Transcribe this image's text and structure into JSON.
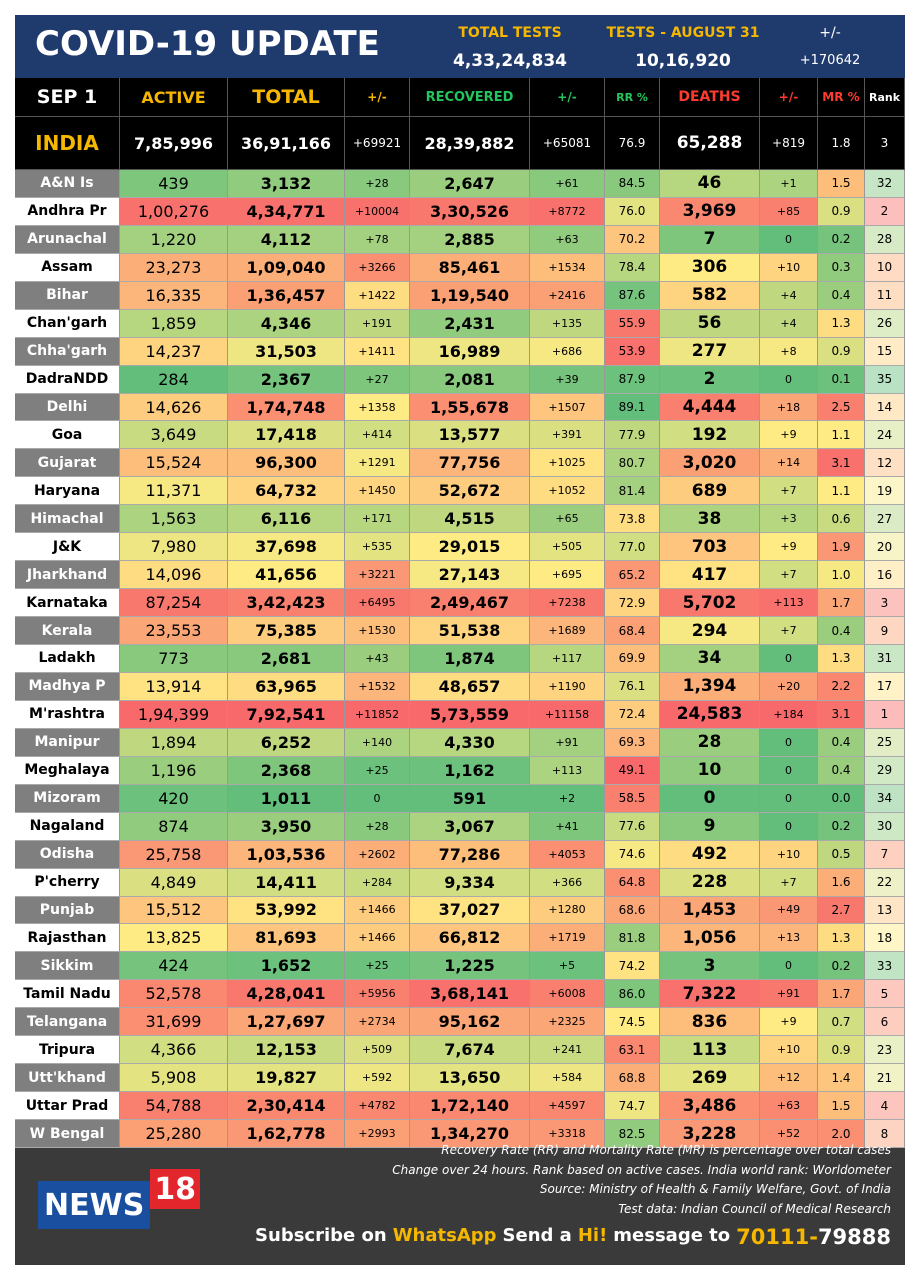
{
  "header": {
    "title": "COVID-19 UPDATE",
    "tests": {
      "label": "TOTAL TESTS",
      "value": "4,33,24,834"
    },
    "tests_day": {
      "label": "TESTS - AUGUST 31",
      "value": "10,16,920"
    },
    "change": {
      "label": "+/-",
      "value": "+170642"
    }
  },
  "table": {
    "columns": [
      "SEP 1",
      "ACTIVE",
      "TOTAL",
      "+/-",
      "RECOVERED",
      "+/-",
      "RR %",
      "DEATHS",
      "+/-",
      "MR %",
      "Rank"
    ],
    "india": [
      "INDIA",
      "7,85,996",
      "36,91,166",
      "+69921",
      "28,39,882",
      "+65081",
      "76.9",
      "65,288",
      "+819",
      "1.8",
      "3"
    ],
    "rows": [
      [
        "A&N Is",
        "439",
        "3,132",
        "+28",
        "2,647",
        "+61",
        "84.5",
        "46",
        "+1",
        "1.5",
        "32"
      ],
      [
        "Andhra Pr",
        "1,00,276",
        "4,34,771",
        "+10004",
        "3,30,526",
        "+8772",
        "76.0",
        "3,969",
        "+85",
        "0.9",
        "2"
      ],
      [
        "Arunachal",
        "1,220",
        "4,112",
        "+78",
        "2,885",
        "+63",
        "70.2",
        "7",
        "0",
        "0.2",
        "28"
      ],
      [
        "Assam",
        "23,273",
        "1,09,040",
        "+3266",
        "85,461",
        "+1534",
        "78.4",
        "306",
        "+10",
        "0.3",
        "10"
      ],
      [
        "Bihar",
        "16,335",
        "1,36,457",
        "+1422",
        "1,19,540",
        "+2416",
        "87.6",
        "582",
        "+4",
        "0.4",
        "11"
      ],
      [
        "Chan'garh",
        "1,859",
        "4,346",
        "+191",
        "2,431",
        "+135",
        "55.9",
        "56",
        "+4",
        "1.3",
        "26"
      ],
      [
        "Chha'garh",
        "14,237",
        "31,503",
        "+1411",
        "16,989",
        "+686",
        "53.9",
        "277",
        "+8",
        "0.9",
        "15"
      ],
      [
        "DadraNDD",
        "284",
        "2,367",
        "+27",
        "2,081",
        "+39",
        "87.9",
        "2",
        "0",
        "0.1",
        "35"
      ],
      [
        "Delhi",
        "14,626",
        "1,74,748",
        "+1358",
        "1,55,678",
        "+1507",
        "89.1",
        "4,444",
        "+18",
        "2.5",
        "14"
      ],
      [
        "Goa",
        "3,649",
        "17,418",
        "+414",
        "13,577",
        "+391",
        "77.9",
        "192",
        "+9",
        "1.1",
        "24"
      ],
      [
        "Gujarat",
        "15,524",
        "96,300",
        "+1291",
        "77,756",
        "+1025",
        "80.7",
        "3,020",
        "+14",
        "3.1",
        "12"
      ],
      [
        "Haryana",
        "11,371",
        "64,732",
        "+1450",
        "52,672",
        "+1052",
        "81.4",
        "689",
        "+7",
        "1.1",
        "19"
      ],
      [
        "Himachal",
        "1,563",
        "6,116",
        "+171",
        "4,515",
        "+65",
        "73.8",
        "38",
        "+3",
        "0.6",
        "27"
      ],
      [
        "J&K",
        "7,980",
        "37,698",
        "+535",
        "29,015",
        "+505",
        "77.0",
        "703",
        "+9",
        "1.9",
        "20"
      ],
      [
        "Jharkhand",
        "14,096",
        "41,656",
        "+3221",
        "27,143",
        "+695",
        "65.2",
        "417",
        "+7",
        "1.0",
        "16"
      ],
      [
        "Karnataka",
        "87,254",
        "3,42,423",
        "+6495",
        "2,49,467",
        "+7238",
        "72.9",
        "5,702",
        "+113",
        "1.7",
        "3"
      ],
      [
        "Kerala",
        "23,553",
        "75,385",
        "+1530",
        "51,538",
        "+1689",
        "68.4",
        "294",
        "+7",
        "0.4",
        "9"
      ],
      [
        "Ladakh",
        "773",
        "2,681",
        "+43",
        "1,874",
        "+117",
        "69.9",
        "34",
        "0",
        "1.3",
        "31"
      ],
      [
        "Madhya P",
        "13,914",
        "63,965",
        "+1532",
        "48,657",
        "+1190",
        "76.1",
        "1,394",
        "+20",
        "2.2",
        "17"
      ],
      [
        "M'rashtra",
        "1,94,399",
        "7,92,541",
        "+11852",
        "5,73,559",
        "+11158",
        "72.4",
        "24,583",
        "+184",
        "3.1",
        "1"
      ],
      [
        "Manipur",
        "1,894",
        "6,252",
        "+140",
        "4,330",
        "+91",
        "69.3",
        "28",
        "0",
        "0.4",
        "25"
      ],
      [
        "Meghalaya",
        "1,196",
        "2,368",
        "+25",
        "1,162",
        "+113",
        "49.1",
        "10",
        "0",
        "0.4",
        "29"
      ],
      [
        "Mizoram",
        "420",
        "1,011",
        "0",
        "591",
        "+2",
        "58.5",
        "0",
        "0",
        "0.0",
        "34"
      ],
      [
        "Nagaland",
        "874",
        "3,950",
        "+28",
        "3,067",
        "+41",
        "77.6",
        "9",
        "0",
        "0.2",
        "30"
      ],
      [
        "Odisha",
        "25,758",
        "1,03,536",
        "+2602",
        "77,286",
        "+4053",
        "74.6",
        "492",
        "+10",
        "0.5",
        "7"
      ],
      [
        "P'cherry",
        "4,849",
        "14,411",
        "+284",
        "9,334",
        "+366",
        "64.8",
        "228",
        "+7",
        "1.6",
        "22"
      ],
      [
        "Punjab",
        "15,512",
        "53,992",
        "+1466",
        "37,027",
        "+1280",
        "68.6",
        "1,453",
        "+49",
        "2.7",
        "13"
      ],
      [
        "Rajasthan",
        "13,825",
        "81,693",
        "+1466",
        "66,812",
        "+1719",
        "81.8",
        "1,056",
        "+13",
        "1.3",
        "18"
      ],
      [
        "Sikkim",
        "424",
        "1,652",
        "+25",
        "1,225",
        "+5",
        "74.2",
        "3",
        "0",
        "0.2",
        "33"
      ],
      [
        "Tamil Nadu",
        "52,578",
        "4,28,041",
        "+5956",
        "3,68,141",
        "+6008",
        "86.0",
        "7,322",
        "+91",
        "1.7",
        "5"
      ],
      [
        "Telangana",
        "31,699",
        "1,27,697",
        "+2734",
        "95,162",
        "+2325",
        "74.5",
        "836",
        "+9",
        "0.7",
        "6"
      ],
      [
        "Tripura",
        "4,366",
        "12,153",
        "+509",
        "7,674",
        "+241",
        "63.1",
        "113",
        "+10",
        "0.9",
        "23"
      ],
      [
        "Utt'khand",
        "5,908",
        "19,827",
        "+592",
        "13,650",
        "+584",
        "68.8",
        "269",
        "+12",
        "1.4",
        "21"
      ],
      [
        "Uttar Prad",
        "54,788",
        "2,30,414",
        "+4782",
        "1,72,140",
        "+4597",
        "74.7",
        "3,486",
        "+63",
        "1.5",
        "4"
      ],
      [
        "W Bengal",
        "25,280",
        "1,62,778",
        "+2993",
        "1,34,270",
        "+3318",
        "82.5",
        "3,228",
        "+52",
        "2.0",
        "8"
      ]
    ]
  },
  "footer": {
    "notes": [
      "Recovery Rate (RR) and Mortality Rate (MR) is percentage over total cases",
      "Change over 24 hours. Rank based on active cases. India world rank: Worldometer",
      "Source: Ministry of Health & Family Welfare, Govt. of India",
      "Test data: Indian Council of Medical Research"
    ],
    "logo": [
      "NEWS",
      "18"
    ],
    "subscribe": [
      "Subscribe on",
      "WhatsApp",
      "Send a",
      "Hi!",
      "message to",
      "70111-",
      "79888"
    ]
  }
}
